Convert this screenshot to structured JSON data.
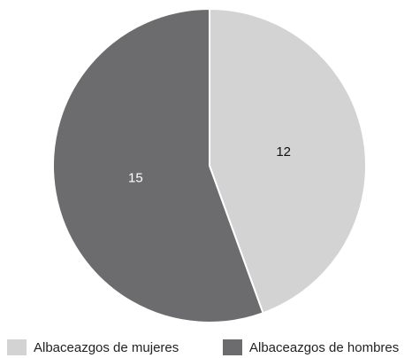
{
  "chart_data": {
    "type": "pie",
    "categories": [
      "Albaceazgos de mujeres",
      "Albaceazgos de hombres"
    ],
    "values": [
      12,
      15
    ],
    "colors": [
      "#d3d3d3",
      "#6c6c6f"
    ],
    "label_colors": [
      "#111111",
      "#ffffff"
    ],
    "start_angle": 0,
    "direction": "clockwise"
  }
}
